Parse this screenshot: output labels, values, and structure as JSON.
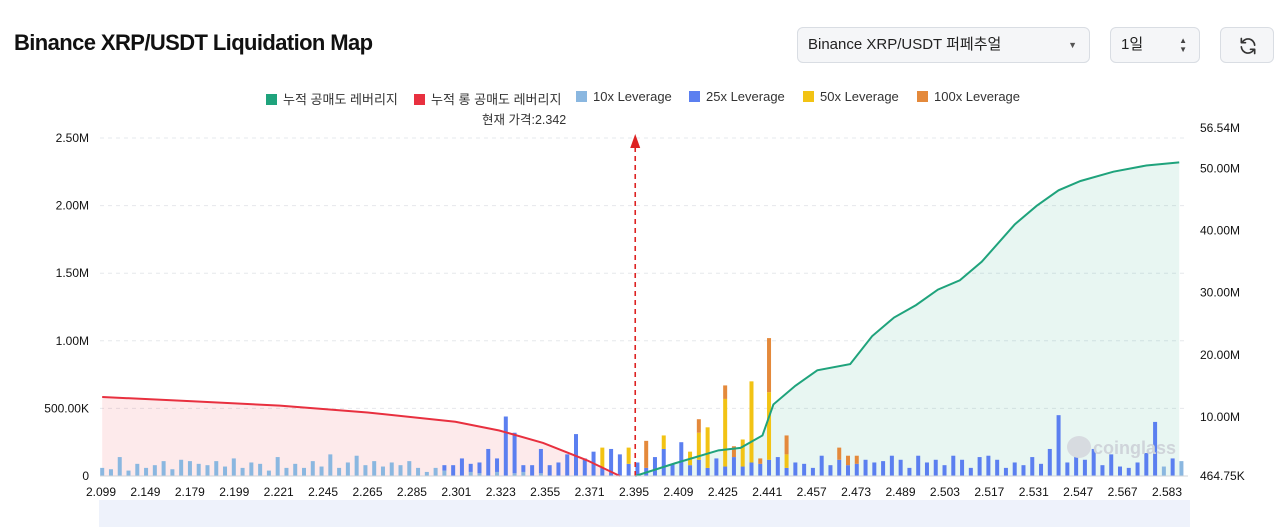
{
  "header": {
    "title": "Binance XRP/USDT Liquidation Map",
    "symbol_select": "Binance XRP/USDT 퍼페추얼",
    "interval_select": "1일"
  },
  "colors": {
    "cum_short": "#1fa37c",
    "cum_long": "#e8303f",
    "lev10": "#8ab7e0",
    "lev25": "#5b7ff0",
    "lev50": "#f2c314",
    "lev100": "#e4893b",
    "price_line": "#d22"
  },
  "legend": [
    {
      "label": "누적 공매도 레버리지",
      "color": "#1fa37c"
    },
    {
      "label": "누적 롱 공매도 레버리지",
      "color": "#e8303f"
    },
    {
      "label": "10x Leverage",
      "color": "#8ab7e0"
    },
    {
      "label": "25x Leverage",
      "color": "#5b7ff0"
    },
    {
      "label": "50x Leverage",
      "color": "#f2c314"
    },
    {
      "label": "100x Leverage",
      "color": "#e4893b"
    }
  ],
  "current_price_label": "현재 가격:2.342",
  "watermark": "coinglass",
  "chart_data": {
    "type": "bar",
    "x_tick_labels": [
      "2.099",
      "2.149",
      "2.179",
      "2.199",
      "2.221",
      "2.245",
      "2.265",
      "2.285",
      "2.301",
      "2.323",
      "2.355",
      "2.371",
      "2.395",
      "2.409",
      "2.425",
      "2.441",
      "2.457",
      "2.473",
      "2.489",
      "2.503",
      "2.517",
      "2.531",
      "2.547",
      "2.567",
      "2.583"
    ],
    "y_left_ticks": [
      "0",
      "500.00K",
      "1.00M",
      "1.50M",
      "2.00M",
      "2.50M"
    ],
    "y_left_range": [
      0,
      2500000
    ],
    "y_right_ticks": [
      "464.75K",
      "10.00M",
      "20.00M",
      "30.00M",
      "40.00M",
      "50.00M",
      "56.54M"
    ],
    "y_right_range": [
      464750,
      56540000
    ],
    "current_price": 2.342,
    "grid": true,
    "legend_position": "top",
    "bar_series": [
      "10x Leverage",
      "25x Leverage",
      "50x Leverage",
      "100x Leverage"
    ],
    "bars": [
      {
        "x": 2.099,
        "v": [
          60000,
          0,
          0,
          0
        ]
      },
      {
        "x": 2.103,
        "v": [
          50000,
          0,
          0,
          0
        ]
      },
      {
        "x": 2.107,
        "v": [
          140000,
          0,
          0,
          0
        ]
      },
      {
        "x": 2.111,
        "v": [
          40000,
          0,
          0,
          0
        ]
      },
      {
        "x": 2.115,
        "v": [
          90000,
          0,
          0,
          0
        ]
      },
      {
        "x": 2.119,
        "v": [
          60000,
          0,
          0,
          0
        ]
      },
      {
        "x": 2.123,
        "v": [
          80000,
          0,
          0,
          0
        ]
      },
      {
        "x": 2.127,
        "v": [
          110000,
          0,
          0,
          0
        ]
      },
      {
        "x": 2.131,
        "v": [
          50000,
          0,
          0,
          0
        ]
      },
      {
        "x": 2.135,
        "v": [
          120000,
          0,
          0,
          0
        ]
      },
      {
        "x": 2.139,
        "v": [
          110000,
          0,
          0,
          0
        ]
      },
      {
        "x": 2.143,
        "v": [
          90000,
          0,
          0,
          0
        ]
      },
      {
        "x": 2.147,
        "v": [
          80000,
          0,
          0,
          0
        ]
      },
      {
        "x": 2.151,
        "v": [
          110000,
          0,
          0,
          0
        ]
      },
      {
        "x": 2.155,
        "v": [
          70000,
          0,
          0,
          0
        ]
      },
      {
        "x": 2.159,
        "v": [
          130000,
          0,
          0,
          0
        ]
      },
      {
        "x": 2.163,
        "v": [
          60000,
          0,
          0,
          0
        ]
      },
      {
        "x": 2.167,
        "v": [
          100000,
          0,
          0,
          0
        ]
      },
      {
        "x": 2.171,
        "v": [
          90000,
          0,
          0,
          0
        ]
      },
      {
        "x": 2.175,
        "v": [
          40000,
          0,
          0,
          0
        ]
      },
      {
        "x": 2.179,
        "v": [
          140000,
          0,
          0,
          0
        ]
      },
      {
        "x": 2.183,
        "v": [
          60000,
          0,
          0,
          0
        ]
      },
      {
        "x": 2.187,
        "v": [
          90000,
          0,
          0,
          0
        ]
      },
      {
        "x": 2.191,
        "v": [
          60000,
          0,
          0,
          0
        ]
      },
      {
        "x": 2.195,
        "v": [
          110000,
          0,
          0,
          0
        ]
      },
      {
        "x": 2.199,
        "v": [
          70000,
          0,
          0,
          0
        ]
      },
      {
        "x": 2.203,
        "v": [
          160000,
          0,
          0,
          0
        ]
      },
      {
        "x": 2.207,
        "v": [
          60000,
          0,
          0,
          0
        ]
      },
      {
        "x": 2.211,
        "v": [
          100000,
          0,
          0,
          0
        ]
      },
      {
        "x": 2.215,
        "v": [
          150000,
          0,
          0,
          0
        ]
      },
      {
        "x": 2.219,
        "v": [
          80000,
          0,
          0,
          0
        ]
      },
      {
        "x": 2.223,
        "v": [
          110000,
          0,
          0,
          0
        ]
      },
      {
        "x": 2.227,
        "v": [
          70000,
          0,
          0,
          0
        ]
      },
      {
        "x": 2.231,
        "v": [
          100000,
          0,
          0,
          0
        ]
      },
      {
        "x": 2.235,
        "v": [
          80000,
          0,
          0,
          0
        ]
      },
      {
        "x": 2.239,
        "v": [
          110000,
          0,
          0,
          0
        ]
      },
      {
        "x": 2.243,
        "v": [
          60000,
          0,
          0,
          0
        ]
      },
      {
        "x": 2.247,
        "v": [
          30000,
          0,
          0,
          0
        ]
      },
      {
        "x": 2.251,
        "v": [
          60000,
          0,
          0,
          0
        ]
      },
      {
        "x": 2.255,
        "v": [
          40000,
          40000,
          0,
          0
        ]
      },
      {
        "x": 2.259,
        "v": [
          0,
          80000,
          0,
          0
        ]
      },
      {
        "x": 2.263,
        "v": [
          0,
          130000,
          0,
          0
        ]
      },
      {
        "x": 2.267,
        "v": [
          30000,
          60000,
          0,
          0
        ]
      },
      {
        "x": 2.271,
        "v": [
          20000,
          80000,
          0,
          0
        ]
      },
      {
        "x": 2.275,
        "v": [
          0,
          200000,
          0,
          0
        ]
      },
      {
        "x": 2.279,
        "v": [
          30000,
          100000,
          0,
          0
        ]
      },
      {
        "x": 2.283,
        "v": [
          0,
          440000,
          0,
          0
        ]
      },
      {
        "x": 2.287,
        "v": [
          20000,
          300000,
          0,
          0
        ]
      },
      {
        "x": 2.291,
        "v": [
          30000,
          50000,
          0,
          0
        ]
      },
      {
        "x": 2.295,
        "v": [
          0,
          80000,
          0,
          0
        ]
      },
      {
        "x": 2.299,
        "v": [
          20000,
          180000,
          0,
          0
        ]
      },
      {
        "x": 2.303,
        "v": [
          0,
          80000,
          0,
          0
        ]
      },
      {
        "x": 2.307,
        "v": [
          0,
          100000,
          0,
          0
        ]
      },
      {
        "x": 2.311,
        "v": [
          0,
          160000,
          0,
          0
        ]
      },
      {
        "x": 2.315,
        "v": [
          0,
          310000,
          0,
          0
        ]
      },
      {
        "x": 2.319,
        "v": [
          0,
          130000,
          0,
          0
        ]
      },
      {
        "x": 2.323,
        "v": [
          0,
          180000,
          0,
          0
        ]
      },
      {
        "x": 2.327,
        "v": [
          0,
          60000,
          150000,
          0
        ]
      },
      {
        "x": 2.331,
        "v": [
          0,
          200000,
          0,
          0
        ]
      },
      {
        "x": 2.335,
        "v": [
          0,
          160000,
          0,
          0
        ]
      },
      {
        "x": 2.339,
        "v": [
          0,
          90000,
          120000,
          0
        ]
      },
      {
        "x": 2.343,
        "v": [
          0,
          100000,
          0,
          0
        ]
      },
      {
        "x": 2.347,
        "v": [
          0,
          60000,
          0,
          200000
        ]
      },
      {
        "x": 2.351,
        "v": [
          0,
          140000,
          0,
          0
        ]
      },
      {
        "x": 2.355,
        "v": [
          0,
          200000,
          100000,
          0
        ]
      },
      {
        "x": 2.359,
        "v": [
          0,
          90000,
          0,
          0
        ]
      },
      {
        "x": 2.363,
        "v": [
          0,
          250000,
          0,
          0
        ]
      },
      {
        "x": 2.367,
        "v": [
          0,
          80000,
          100000,
          0
        ]
      },
      {
        "x": 2.371,
        "v": [
          0,
          120000,
          200000,
          100000
        ]
      },
      {
        "x": 2.375,
        "v": [
          0,
          60000,
          300000,
          0
        ]
      },
      {
        "x": 2.379,
        "v": [
          0,
          130000,
          0,
          0
        ]
      },
      {
        "x": 2.383,
        "v": [
          0,
          70000,
          500000,
          100000
        ]
      },
      {
        "x": 2.387,
        "v": [
          0,
          140000,
          0,
          80000
        ]
      },
      {
        "x": 2.391,
        "v": [
          0,
          70000,
          200000,
          0
        ]
      },
      {
        "x": 2.395,
        "v": [
          0,
          100000,
          600000,
          0
        ]
      },
      {
        "x": 2.399,
        "v": [
          0,
          90000,
          0,
          40000
        ]
      },
      {
        "x": 2.403,
        "v": [
          0,
          120000,
          500000,
          400000
        ]
      },
      {
        "x": 2.407,
        "v": [
          0,
          140000,
          0,
          0
        ]
      },
      {
        "x": 2.411,
        "v": [
          0,
          60000,
          100000,
          140000
        ]
      },
      {
        "x": 2.415,
        "v": [
          0,
          100000,
          0,
          0
        ]
      },
      {
        "x": 2.419,
        "v": [
          0,
          90000,
          0,
          0
        ]
      },
      {
        "x": 2.423,
        "v": [
          0,
          60000,
          0,
          0
        ]
      },
      {
        "x": 2.427,
        "v": [
          0,
          150000,
          0,
          0
        ]
      },
      {
        "x": 2.431,
        "v": [
          0,
          80000,
          0,
          0
        ]
      },
      {
        "x": 2.435,
        "v": [
          0,
          120000,
          0,
          90000
        ]
      },
      {
        "x": 2.439,
        "v": [
          0,
          80000,
          0,
          70000
        ]
      },
      {
        "x": 2.443,
        "v": [
          0,
          90000,
          0,
          60000
        ]
      },
      {
        "x": 2.447,
        "v": [
          0,
          120000,
          0,
          0
        ]
      },
      {
        "x": 2.451,
        "v": [
          0,
          100000,
          0,
          0
        ]
      },
      {
        "x": 2.455,
        "v": [
          0,
          110000,
          0,
          0
        ]
      },
      {
        "x": 2.459,
        "v": [
          0,
          150000,
          0,
          0
        ]
      },
      {
        "x": 2.463,
        "v": [
          0,
          120000,
          0,
          0
        ]
      },
      {
        "x": 2.467,
        "v": [
          0,
          60000,
          0,
          0
        ]
      },
      {
        "x": 2.471,
        "v": [
          0,
          150000,
          0,
          0
        ]
      },
      {
        "x": 2.475,
        "v": [
          0,
          100000,
          0,
          0
        ]
      },
      {
        "x": 2.479,
        "v": [
          0,
          120000,
          0,
          0
        ]
      },
      {
        "x": 2.483,
        "v": [
          0,
          80000,
          0,
          0
        ]
      },
      {
        "x": 2.487,
        "v": [
          0,
          150000,
          0,
          0
        ]
      },
      {
        "x": 2.491,
        "v": [
          0,
          120000,
          0,
          0
        ]
      },
      {
        "x": 2.495,
        "v": [
          0,
          60000,
          0,
          0
        ]
      },
      {
        "x": 2.499,
        "v": [
          0,
          140000,
          0,
          0
        ]
      },
      {
        "x": 2.503,
        "v": [
          0,
          150000,
          0,
          0
        ]
      },
      {
        "x": 2.507,
        "v": [
          0,
          120000,
          0,
          0
        ]
      },
      {
        "x": 2.511,
        "v": [
          0,
          60000,
          0,
          0
        ]
      },
      {
        "x": 2.515,
        "v": [
          0,
          100000,
          0,
          0
        ]
      },
      {
        "x": 2.519,
        "v": [
          0,
          80000,
          0,
          0
        ]
      },
      {
        "x": 2.523,
        "v": [
          0,
          140000,
          0,
          0
        ]
      },
      {
        "x": 2.527,
        "v": [
          0,
          90000,
          0,
          0
        ]
      },
      {
        "x": 2.531,
        "v": [
          0,
          200000,
          0,
          0
        ]
      },
      {
        "x": 2.535,
        "v": [
          0,
          450000,
          0,
          0
        ]
      },
      {
        "x": 2.539,
        "v": [
          0,
          100000,
          0,
          0
        ]
      },
      {
        "x": 2.543,
        "v": [
          0,
          150000,
          0,
          0
        ]
      },
      {
        "x": 2.547,
        "v": [
          0,
          120000,
          0,
          0
        ]
      },
      {
        "x": 2.551,
        "v": [
          0,
          200000,
          0,
          0
        ]
      },
      {
        "x": 2.555,
        "v": [
          0,
          80000,
          0,
          0
        ]
      },
      {
        "x": 2.559,
        "v": [
          0,
          160000,
          0,
          0
        ]
      },
      {
        "x": 2.563,
        "v": [
          0,
          70000,
          0,
          0
        ]
      },
      {
        "x": 2.567,
        "v": [
          0,
          60000,
          0,
          0
        ]
      },
      {
        "x": 2.571,
        "v": [
          0,
          100000,
          0,
          0
        ]
      },
      {
        "x": 2.575,
        "v": [
          0,
          170000,
          0,
          0
        ]
      },
      {
        "x": 2.579,
        "v": [
          0,
          400000,
          0,
          0
        ]
      },
      {
        "x": 2.583,
        "v": [
          70000,
          0,
          0,
          0
        ]
      },
      {
        "x": 2.587,
        "v": [
          0,
          130000,
          0,
          0
        ]
      },
      {
        "x": 2.591,
        "v": [
          110000,
          0,
          0,
          0
        ]
      }
    ],
    "cum_long": {
      "name": "누적 롱 공매도 레버리지",
      "points": [
        [
          2.099,
          13200000
        ],
        [
          2.14,
          12500000
        ],
        [
          2.18,
          11800000
        ],
        [
          2.22,
          10700000
        ],
        [
          2.26,
          9200000
        ],
        [
          2.28,
          7800000
        ],
        [
          2.3,
          5800000
        ],
        [
          2.32,
          3000000
        ],
        [
          2.335,
          464750
        ]
      ]
    },
    "cum_short": {
      "name": "누적 공매도 레버리지",
      "points": [
        [
          2.342,
          464750
        ],
        [
          2.36,
          2500000
        ],
        [
          2.38,
          4600000
        ],
        [
          2.39,
          5000000
        ],
        [
          2.4,
          7000000
        ],
        [
          2.405,
          12000000
        ],
        [
          2.415,
          15000000
        ],
        [
          2.425,
          17500000
        ],
        [
          2.44,
          18500000
        ],
        [
          2.45,
          23000000
        ],
        [
          2.46,
          26000000
        ],
        [
          2.47,
          28000000
        ],
        [
          2.48,
          30500000
        ],
        [
          2.49,
          32000000
        ],
        [
          2.5,
          35000000
        ],
        [
          2.515,
          41000000
        ],
        [
          2.525,
          44000000
        ],
        [
          2.535,
          46500000
        ],
        [
          2.545,
          48000000
        ],
        [
          2.56,
          49500000
        ],
        [
          2.575,
          50500000
        ],
        [
          2.59,
          51000000
        ]
      ]
    }
  }
}
